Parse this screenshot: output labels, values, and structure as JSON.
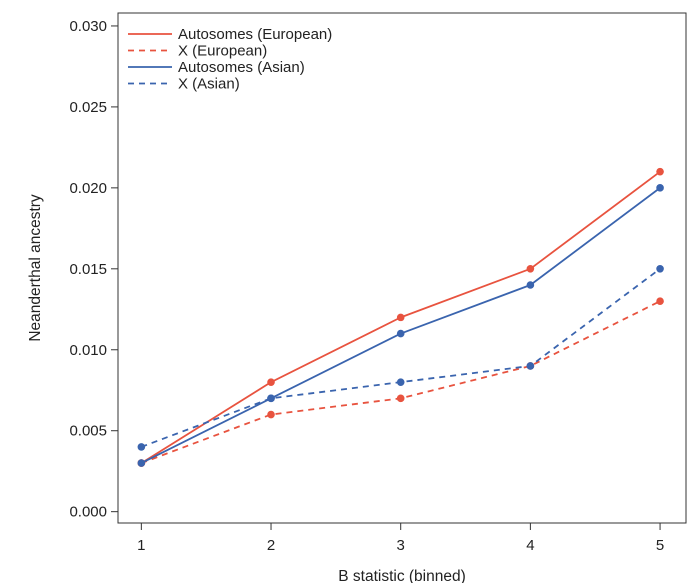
{
  "chart_data": {
    "type": "line",
    "title": "",
    "xlabel": "B statistic (binned)",
    "ylabel": "Neanderthal ancestry",
    "x": [
      1,
      2,
      3,
      4,
      5
    ],
    "x_tick_labels": [
      "1",
      "2",
      "3",
      "4",
      "5"
    ],
    "y_ticks": [
      0.0,
      0.005,
      0.01,
      0.015,
      0.02,
      0.025,
      0.03
    ],
    "y_tick_labels": [
      "0.000",
      "0.005",
      "0.010",
      "0.015",
      "0.020",
      "0.025",
      "0.030"
    ],
    "xlim": [
      0.82,
      5.2
    ],
    "ylim": [
      -0.0007,
      0.0308
    ],
    "grid": false,
    "legend_position": "top-left",
    "series": [
      {
        "name": "Autosomes (European)",
        "color": "#e8533f",
        "line_style": "solid",
        "values": [
          0.003,
          0.008,
          0.012,
          0.015,
          0.021
        ]
      },
      {
        "name": "X (European)",
        "color": "#e8533f",
        "line_style": "dashed",
        "values": [
          0.003,
          0.006,
          0.007,
          0.009,
          0.013
        ]
      },
      {
        "name": "Autosomes (Asian)",
        "color": "#3a64ae",
        "line_style": "solid",
        "values": [
          0.003,
          0.007,
          0.011,
          0.014,
          0.02
        ]
      },
      {
        "name": "X (Asian)",
        "color": "#3a64ae",
        "line_style": "dashed",
        "values": [
          0.004,
          0.007,
          0.008,
          0.009,
          0.015
        ]
      }
    ]
  }
}
